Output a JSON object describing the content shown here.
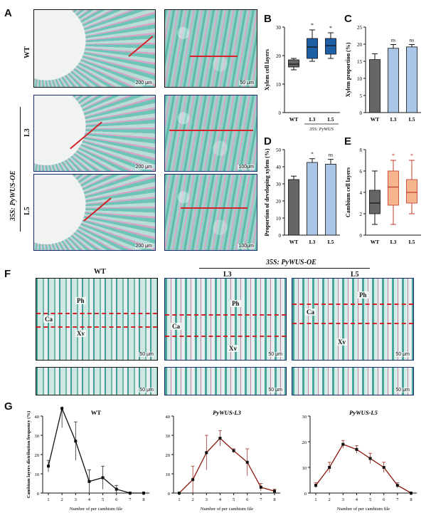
{
  "panels": {
    "A": "A",
    "B": "B",
    "C": "C",
    "D": "D",
    "E": "E",
    "F": "F",
    "G": "G"
  },
  "row_labels": {
    "wt": "WT",
    "l3": "L3",
    "l5": "L5",
    "group": "35S: PyWUS-OE"
  },
  "scale_bars": {
    "a_wt_left": "200 μm",
    "a_wt_right": "50 μm",
    "a_l3_left": "200 μm",
    "a_l3_right": "100μm",
    "a_l5_left": "200 μm",
    "a_l5_right": "100μm",
    "f_wt": "50 μm",
    "f_l3": "50 μm",
    "f_l5": "50 μm",
    "f2_wt": "50 μm",
    "f2_l3": "50 μm",
    "f2_l5": "50 μm"
  },
  "panelF": {
    "group": "35S: PyWUS-OE",
    "col_wt": "WT",
    "col_l3": "L3",
    "col_l5": "L5",
    "ph": "Ph",
    "ca": "Ca",
    "xv": "Xv"
  },
  "colors": {
    "wt_fill": "#666666",
    "oe_fill": "#a9c6e8",
    "box_blue": "#1f5fa6",
    "box_red": "#f6b48f",
    "line_black": "#111111",
    "line_red": "#8b1a0e",
    "navy": "#1b2a6b"
  },
  "chart_data": [
    {
      "panel": "B",
      "type": "box",
      "ylabel": "Xylem cell layers",
      "ylim": [
        0,
        30
      ],
      "yticks": [
        0,
        10,
        20,
        30
      ],
      "categories": [
        "WT",
        "L3",
        "L5"
      ],
      "sublabel": "35S: PyWUS",
      "boxes": [
        {
          "min": 15,
          "q1": 16,
          "median": 17,
          "q3": 18.5,
          "max": 19,
          "color": "#666666"
        },
        {
          "min": 18,
          "q1": 19,
          "median": 23,
          "q3": 26,
          "max": 29,
          "color": "#1f5fa6"
        },
        {
          "min": 19,
          "q1": 20.5,
          "median": 23.5,
          "q3": 26,
          "max": 28,
          "color": "#1f5fa6"
        }
      ],
      "annotations": [
        "",
        "*",
        "*"
      ]
    },
    {
      "panel": "C",
      "type": "bar",
      "ylabel": "Xylem proportion (%)",
      "ylim": [
        0,
        25
      ],
      "yticks": [
        0,
        5,
        10,
        15,
        20,
        25
      ],
      "categories": [
        "WT",
        "L3",
        "L5"
      ],
      "values": [
        15.5,
        18.8,
        19.2
      ],
      "errors": [
        1.7,
        1.1,
        0.7
      ],
      "annotations": [
        "",
        "ns",
        "ns"
      ]
    },
    {
      "panel": "D",
      "type": "bar",
      "ylabel": "Proportion of developing xylem (%)",
      "ylim": [
        0,
        50
      ],
      "yticks": [
        0,
        10,
        20,
        30,
        40,
        50
      ],
      "categories": [
        "WT",
        "L3",
        "L5"
      ],
      "values": [
        32.5,
        42.5,
        41.5
      ],
      "errors": [
        2.0,
        2.2,
        2.8
      ],
      "annotations": [
        "",
        "*",
        "ns"
      ]
    },
    {
      "panel": "E",
      "type": "box",
      "ylabel": "Cambium cell layers",
      "ylim": [
        0,
        8
      ],
      "yticks": [
        0,
        2,
        4,
        6,
        8
      ],
      "categories": [
        "WT",
        "L3",
        "L5"
      ],
      "boxes": [
        {
          "min": 1,
          "q1": 2,
          "median": 3,
          "q3": 4.2,
          "max": 6,
          "color": "#666666"
        },
        {
          "min": 1,
          "q1": 2.8,
          "median": 4.5,
          "q3": 6,
          "max": 7,
          "color": "#f6b48f"
        },
        {
          "min": 2,
          "q1": 3,
          "median": 4,
          "q3": 5.2,
          "max": 7,
          "color": "#f6b48f"
        }
      ],
      "annotations": [
        "",
        "*",
        "*"
      ]
    },
    {
      "panel": "G",
      "type": "line",
      "title": "WT",
      "xlabel": "Number of per cambium file",
      "ylabel": "Cambium layers distribution frequency (%)",
      "ylim": [
        0,
        40
      ],
      "yticks": [
        0,
        10,
        20,
        30,
        40
      ],
      "x": [
        1,
        2,
        3,
        4,
        5,
        6,
        7,
        8
      ],
      "values": [
        14,
        44,
        27,
        6,
        8,
        2,
        0,
        0
      ],
      "errors": [
        3,
        10,
        10,
        6,
        6,
        2,
        0,
        0
      ]
    },
    {
      "panel": "G",
      "type": "line",
      "title": "PyWUS-L3",
      "xlabel": "Number of per cambium file",
      "ylim": [
        0,
        40
      ],
      "yticks": [
        0,
        10,
        20,
        30,
        40
      ],
      "x": [
        1,
        2,
        3,
        4,
        5,
        6,
        7,
        8
      ],
      "values": [
        0,
        7,
        21,
        28.5,
        22,
        16,
        3,
        1
      ],
      "errors": [
        0,
        7,
        9,
        4,
        1,
        7,
        2,
        1
      ]
    },
    {
      "panel": "G",
      "type": "line",
      "title": "PyWUS-L5",
      "xlabel": "Number of per cambium file",
      "ylim": [
        0,
        30
      ],
      "yticks": [
        0,
        10,
        20,
        30
      ],
      "x": [
        1,
        2,
        3,
        4,
        5,
        6,
        7,
        8
      ],
      "values": [
        3,
        10,
        19,
        17,
        13.5,
        10,
        3,
        0
      ],
      "errors": [
        1,
        2,
        1.5,
        1.5,
        2,
        2,
        1,
        0
      ]
    }
  ]
}
